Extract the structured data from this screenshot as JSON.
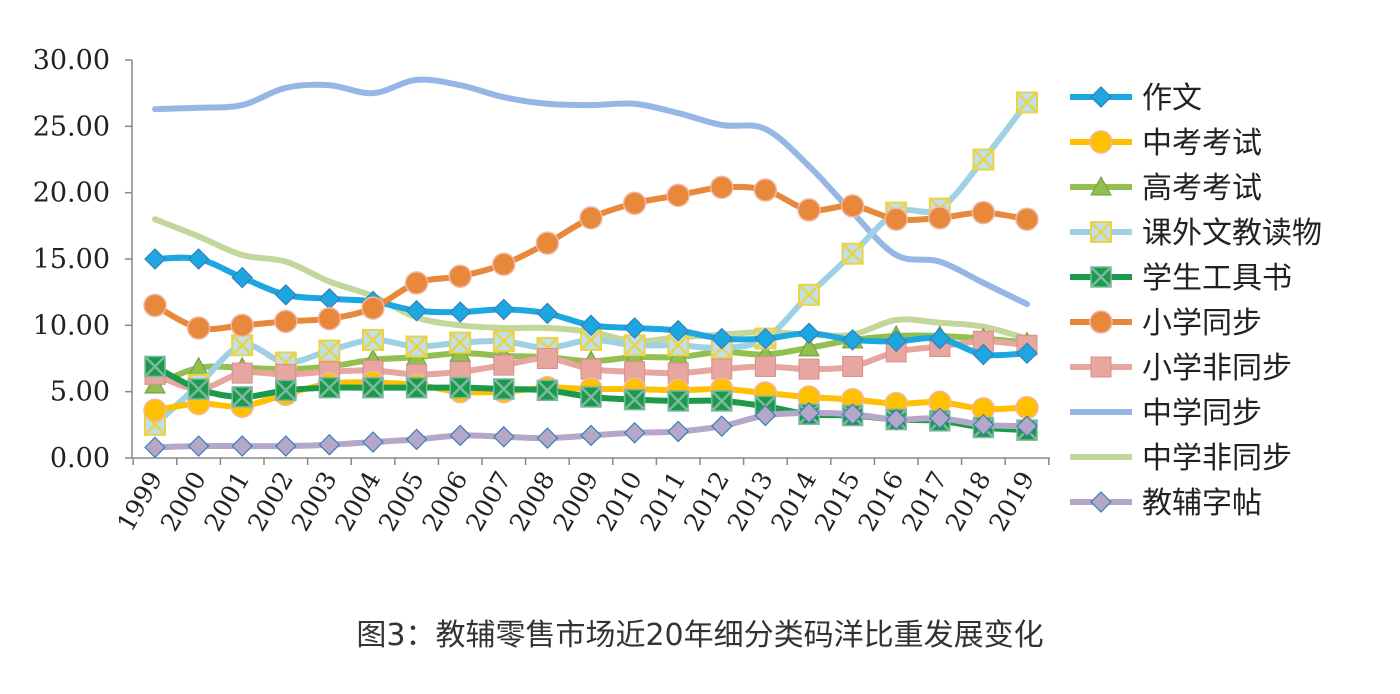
{
  "caption": "图3：教辅零售市场近20年细分类码洋比重发展变化",
  "chart_data": {
    "type": "line",
    "title": "",
    "xlabel": "",
    "ylabel": "",
    "ylim": [
      0,
      30
    ],
    "yticks": [
      "0.00",
      "5.00",
      "10.00",
      "15.00",
      "20.00",
      "25.00",
      "30.00"
    ],
    "grid": false,
    "legend_position": "right",
    "x": [
      "1999",
      "2000",
      "2001",
      "2002",
      "2003",
      "2004",
      "2005",
      "2006",
      "2007",
      "2008",
      "2009",
      "2010",
      "2011",
      "2012",
      "2013",
      "2014",
      "2015",
      "2016",
      "2017",
      "2018",
      "2019"
    ],
    "series": [
      {
        "name": "作文",
        "color": "#1ca7e0",
        "marker": "diamond",
        "values": [
          15.0,
          15.0,
          13.6,
          12.3,
          12.0,
          11.8,
          11.1,
          11.0,
          11.2,
          10.9,
          10.0,
          9.8,
          9.6,
          9.0,
          9.0,
          9.4,
          8.9,
          8.8,
          9.0,
          7.8,
          7.9
        ]
      },
      {
        "name": "中考考试",
        "color": "#ffc000",
        "marker": "circle",
        "values": [
          3.6,
          4.1,
          3.9,
          4.8,
          5.6,
          5.7,
          5.5,
          5.0,
          5.0,
          5.3,
          5.2,
          5.2,
          5.1,
          5.2,
          4.9,
          4.6,
          4.4,
          4.1,
          4.2,
          3.7,
          3.8
        ]
      },
      {
        "name": "高考考试",
        "color": "#92c050",
        "marker": "triangle",
        "values": [
          5.5,
          6.8,
          6.8,
          6.7,
          6.9,
          7.4,
          7.6,
          7.9,
          7.7,
          7.6,
          7.3,
          7.6,
          7.6,
          8.0,
          7.8,
          8.3,
          8.9,
          9.2,
          9.2,
          9.0,
          8.7
        ]
      },
      {
        "name": "课外文教读物",
        "color": "#9fd1e4",
        "marker": "xsquare",
        "values": [
          2.5,
          5.5,
          8.5,
          7.2,
          8.1,
          8.9,
          8.4,
          8.7,
          8.8,
          8.3,
          8.9,
          8.5,
          8.5,
          8.3,
          9.0,
          12.3,
          15.4,
          18.5,
          18.8,
          22.5,
          26.8
        ]
      },
      {
        "name": "学生工具书",
        "color": "#1a9a4a",
        "marker": "xbox",
        "values": [
          6.9,
          5.2,
          4.6,
          5.1,
          5.3,
          5.3,
          5.3,
          5.3,
          5.2,
          5.1,
          4.6,
          4.4,
          4.3,
          4.3,
          3.9,
          3.3,
          3.2,
          2.9,
          2.8,
          2.3,
          2.1
        ]
      },
      {
        "name": "小学同步",
        "color": "#e8883a",
        "marker": "circle",
        "values": [
          11.5,
          9.8,
          10.0,
          10.3,
          10.5,
          11.3,
          13.2,
          13.7,
          14.6,
          16.2,
          18.1,
          19.2,
          19.8,
          20.4,
          20.2,
          18.7,
          19.0,
          18.0,
          18.1,
          18.5,
          18.0
        ]
      },
      {
        "name": "小学非同步",
        "color": "#e8a6a0",
        "marker": "square",
        "values": [
          6.3,
          5.2,
          6.4,
          6.3,
          6.5,
          6.6,
          6.3,
          6.5,
          7.0,
          7.5,
          6.7,
          6.5,
          6.4,
          6.7,
          6.9,
          6.7,
          6.9,
          8.0,
          8.4,
          8.8,
          8.5
        ]
      },
      {
        "name": "中学同步",
        "color": "#96b7e6",
        "marker": "none",
        "values": [
          26.3,
          26.4,
          26.6,
          27.9,
          28.1,
          27.5,
          28.5,
          28.1,
          27.2,
          26.7,
          26.6,
          26.7,
          26.0,
          25.1,
          24.8,
          22.0,
          18.5,
          15.3,
          14.8,
          13.2,
          11.6
        ]
      },
      {
        "name": "中学非同步",
        "color": "#c3d69b",
        "marker": "none",
        "values": [
          18.0,
          16.7,
          15.3,
          14.8,
          13.3,
          12.2,
          10.6,
          10.0,
          9.8,
          9.8,
          9.5,
          8.8,
          9.1,
          9.3,
          9.5,
          9.3,
          9.3,
          10.4,
          10.2,
          9.9,
          9.0
        ]
      },
      {
        "name": "教辅字帖",
        "color": "#b4a7c8",
        "marker": "diamond",
        "values": [
          0.8,
          0.9,
          0.9,
          0.9,
          1.0,
          1.2,
          1.4,
          1.7,
          1.6,
          1.5,
          1.7,
          1.9,
          2.0,
          2.4,
          3.2,
          3.4,
          3.3,
          2.9,
          3.0,
          2.5,
          2.4
        ]
      }
    ]
  }
}
